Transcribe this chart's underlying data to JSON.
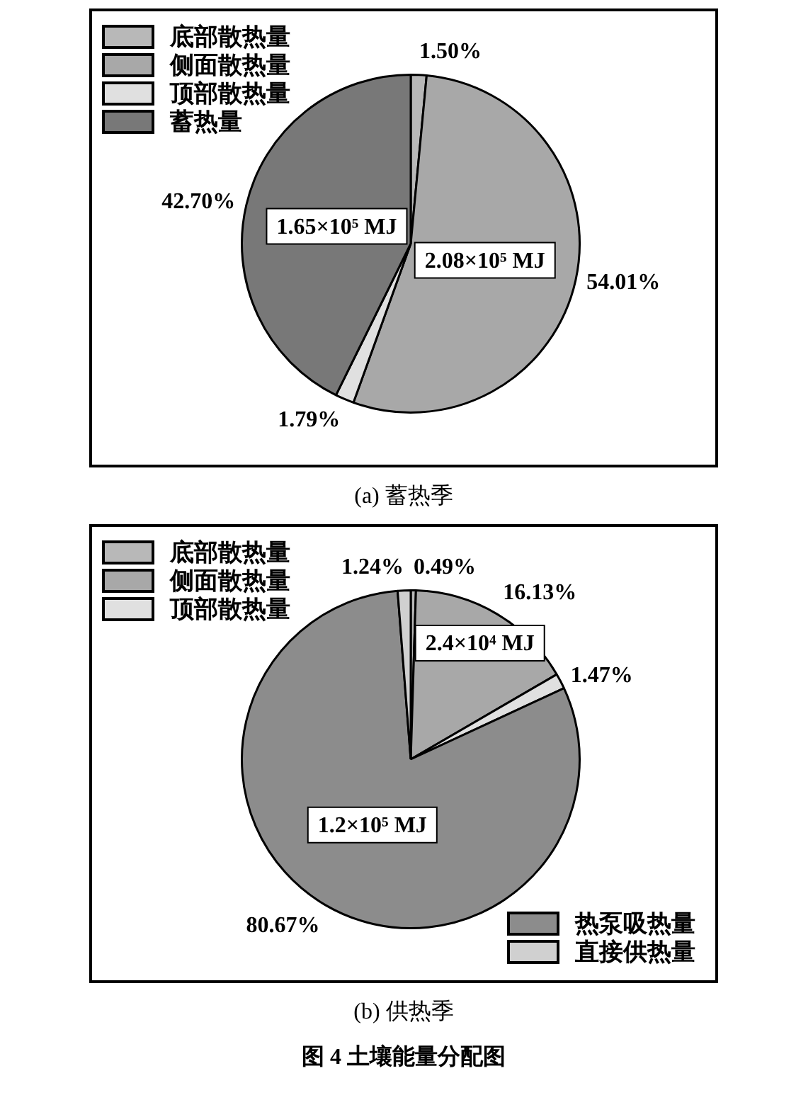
{
  "chart_data": [
    {
      "type": "pie",
      "title": "(a) 蓄热季",
      "categories": [
        "底部散热量",
        "侧面散热量",
        "顶部散热量",
        "蓄热量"
      ],
      "values": [
        1.5,
        54.01,
        1.79,
        42.7
      ],
      "colors": [
        "#b8b8b8",
        "#a8a8a8",
        "#e0e0e0",
        "#787878"
      ],
      "value_labels": [
        "1.50%",
        "54.01%",
        "1.79%",
        "42.70%"
      ],
      "annotations": [
        {
          "text": "2.08×10⁵ MJ",
          "x": "侧面散热量"
        },
        {
          "text": "1.65×10⁵ MJ",
          "x": "蓄热量"
        }
      ],
      "legend": "top left"
    },
    {
      "type": "pie",
      "title": "(b) 供热季",
      "categories": [
        "底部散热量",
        "侧面散热量",
        "顶部散热量",
        "热泵吸热量",
        "直接供热量"
      ],
      "values": [
        0.49,
        16.13,
        1.47,
        80.67,
        1.24
      ],
      "colors": [
        "#b8b8b8",
        "#a8a8a8",
        "#e0e0e0",
        "#8c8c8c",
        "#d0d0d0"
      ],
      "value_labels": [
        "0.49%",
        "16.13%",
        "1.47%",
        "80.67%",
        "1.24%"
      ],
      "annotations": [
        {
          "text": "2.4×10⁴ MJ",
          "x": "侧面散热量"
        },
        {
          "text": "1.2×10⁵ MJ",
          "x": "热泵吸热量"
        },
        "图 4 土壤能量分配图"
      ],
      "legend": "top left"
    }
  ]
}
